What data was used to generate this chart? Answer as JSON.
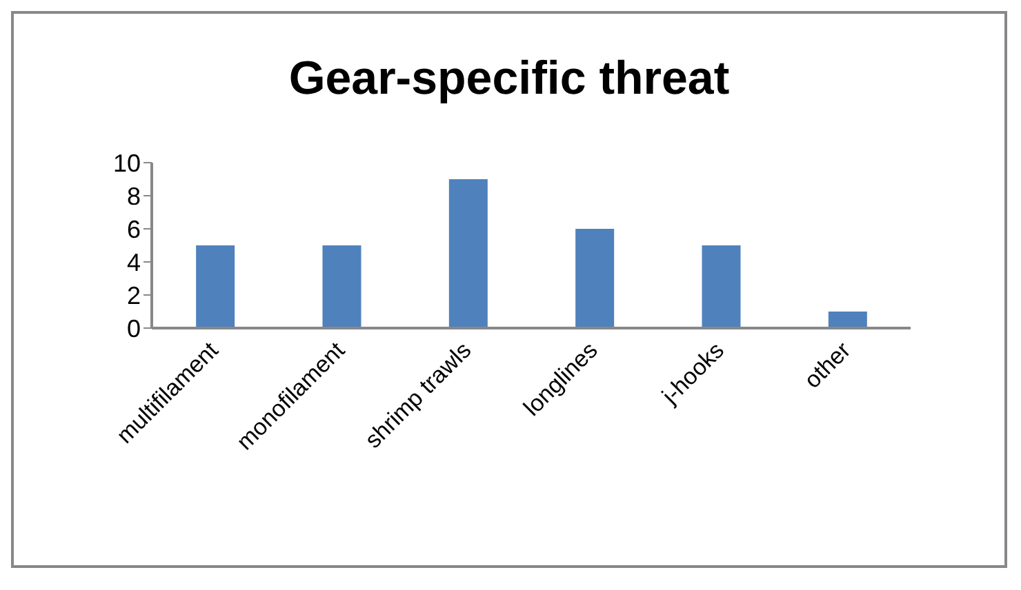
{
  "chart_data": {
    "type": "bar",
    "title": "Gear-specific threat",
    "categories": [
      "multifilament",
      "monofilament",
      "shrimp trawls",
      "longlines",
      "j-hooks",
      "other"
    ],
    "values": [
      5,
      5,
      9,
      6,
      5,
      1
    ],
    "color": "#4f81bd",
    "ylim": [
      0,
      10
    ],
    "yticks": [
      0,
      2,
      4,
      6,
      8,
      10
    ],
    "grid": false,
    "legend": false
  }
}
